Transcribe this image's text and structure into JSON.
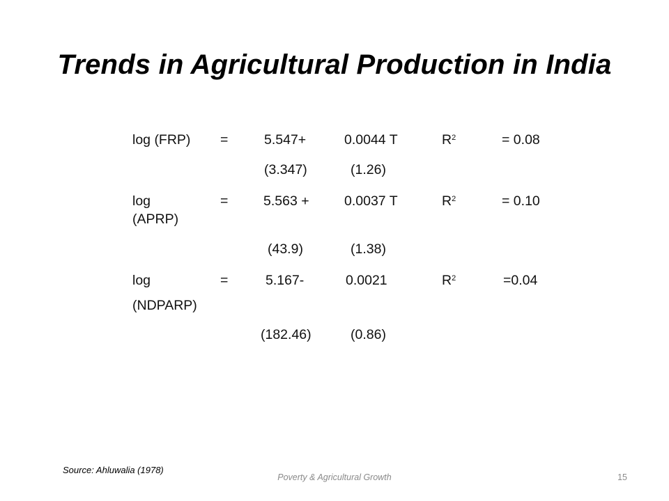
{
  "slide": {
    "title": "Trends in Agricultural Production in India",
    "source": "Source: Ahluwalia (1978)",
    "footer": "Poverty & Agricultural Growth",
    "page_number": "15"
  },
  "regressions": [
    {
      "label_line1": "log (FRP)",
      "label_line2": "",
      "equals": "=",
      "constant": "5.547+",
      "coefficient": "0.0044 T",
      "r2_label": "R",
      "r2_sup": "2",
      "r2_value": "= 0.08",
      "constant_t": "(3.347)",
      "coefficient_t": "(1.26)"
    },
    {
      "label_line1": "log",
      "label_line2": "(APRP)",
      "equals": "=",
      "constant": "5.563 +",
      "coefficient": "0.0037 T",
      "r2_label": "R",
      "r2_sup": "2",
      "r2_value": "= 0.10",
      "constant_t": "(43.9)",
      "coefficient_t": "(1.38)"
    },
    {
      "label_line1": "log",
      "label_line2": "(NDPARP)",
      "equals": "=",
      "constant": "5.167-",
      "coefficient": "0.0021",
      "r2_label": "R",
      "r2_sup": "2",
      "r2_value": "=0.04",
      "constant_t": "(182.46)",
      "coefficient_t": "(0.86)"
    }
  ]
}
